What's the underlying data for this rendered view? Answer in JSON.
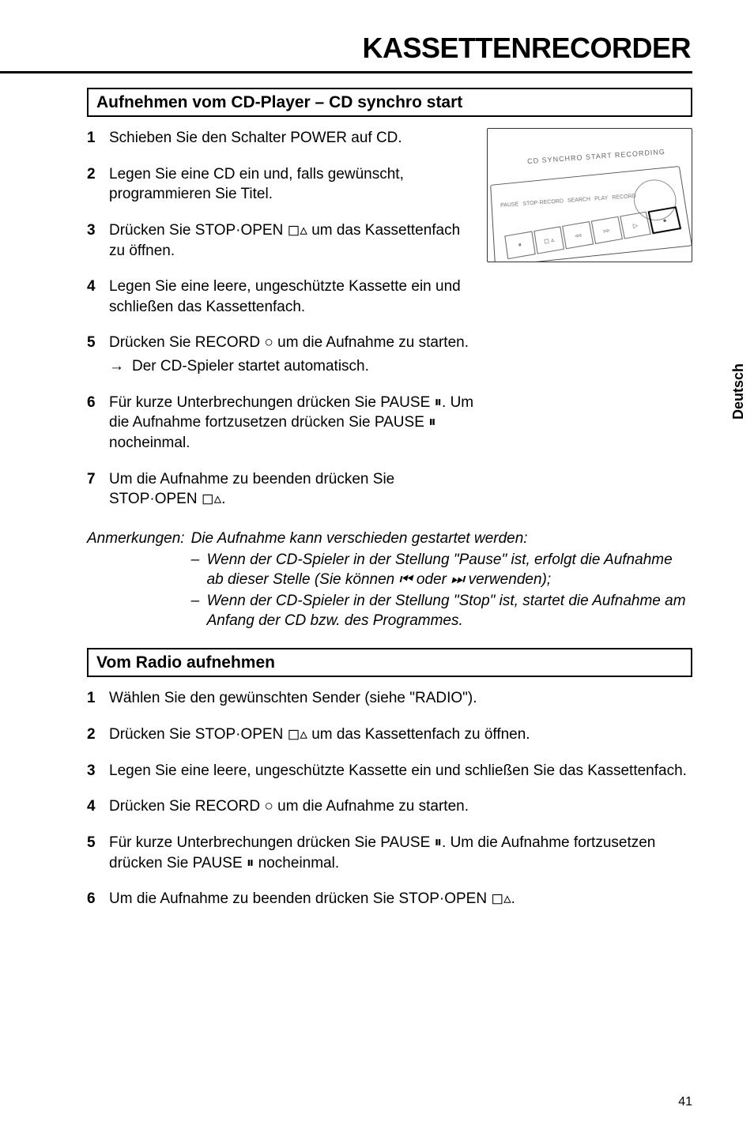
{
  "page_title": "KASSETTENRECORDER",
  "side_tab": "Deutsch",
  "page_number": "41",
  "section1": {
    "heading": "Aufnehmen vom CD-Player – CD synchro start",
    "steps": [
      "Schieben Sie den Schalter POWER auf CD.",
      "Legen Sie eine CD ein und, falls gewünscht, programmieren Sie Titel.",
      "Drücken Sie STOP·OPEN ◻▵ um das Kassettenfach zu öffnen.",
      "Legen Sie eine leere, ungeschützte Kassette ein und schließen das Kassettenfach.",
      "Drücken Sie RECORD ○ um die Aufnahme zu starten.",
      "Für kurze Unterbrechungen drücken Sie PAUSE ⏸. Um die Aufnahme fortzusetzen drücken Sie PAUSE ⏸ nocheinmal.",
      "Um die Aufnahme zu beenden drücken Sie STOP·OPEN ◻▵."
    ],
    "step5_sub": "Der CD-Spieler startet automatisch.",
    "notes_label": "Anmerkungen:",
    "notes_lead": "Die Aufnahme kann verschieden gestartet werden:",
    "notes_items": [
      "Wenn der CD-Spieler in der Stellung \"Pause\" ist, erfolgt die Aufnahme ab dieser Stelle (Sie können ⏮ oder ⏭ verwenden);",
      "Wenn der CD-Spieler in der Stellung \"Stop\" ist, startet die Aufnahme am Anfang der CD bzw. des Programmes."
    ]
  },
  "section2": {
    "heading": "Vom Radio aufnehmen",
    "steps": [
      "Wählen Sie den gewünschten Sender (siehe \"RADIO\").",
      "Drücken Sie STOP·OPEN ◻▵ um das Kassettenfach zu öffnen.",
      "Legen Sie eine leere, ungeschützte Kassette ein und schließen Sie das Kassettenfach.",
      "Drücken Sie RECORD ○ um die Aufnahme zu starten.",
      "Für kurze Unterbrechungen drücken Sie PAUSE ⏸. Um die Aufnahme fortzusetzen drücken Sie PAUSE ⏸ nocheinmal.",
      "Um die Aufnahme zu beenden drücken Sie STOP·OPEN ◻▵."
    ]
  },
  "figure": {
    "top_label": "CD SYNCHRO START RECORDING",
    "row_labels": [
      "PAUSE",
      "STOP·RECORD",
      "SEARCH",
      "PLAY",
      "RECORD"
    ],
    "keys": [
      "⏸",
      "◻ ▵",
      "◃◃",
      "▹▹",
      "▷",
      "●"
    ]
  }
}
